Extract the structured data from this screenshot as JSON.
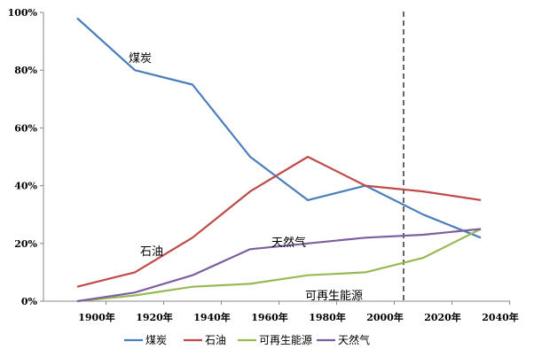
{
  "chart_data": {
    "type": "line",
    "title": "",
    "xlabel": "",
    "ylabel": "",
    "categories": [
      "1900年",
      "1920年",
      "1940年",
      "1960年",
      "1980年",
      "2000年",
      "2020年",
      "2040年"
    ],
    "y_ticks": [
      "0%",
      "20%",
      "40%",
      "60%",
      "80%",
      "100%"
    ],
    "ylim": [
      0,
      100
    ],
    "grid": false,
    "legend_position": "bottom",
    "reference_line": {
      "x": "2020年",
      "style": "dashed",
      "color": "#000000"
    },
    "series": [
      {
        "name": "煤炭",
        "color": "#4a7ebb",
        "values": [
          98,
          80,
          75,
          50,
          35,
          40,
          30,
          22
        ]
      },
      {
        "name": "石油",
        "color": "#be4b48",
        "values": [
          5,
          10,
          22,
          38,
          50,
          40,
          38,
          35
        ]
      },
      {
        "name": "可再生能源",
        "color": "#98b954",
        "values": [
          0,
          2,
          5,
          6,
          9,
          10,
          15,
          25
        ]
      },
      {
        "name": "天然气",
        "color": "#7d5fa0",
        "values": [
          0,
          3,
          9,
          18,
          20,
          22,
          23,
          25
        ]
      }
    ],
    "annotations": [
      {
        "text": "煤炭",
        "series": "煤炭"
      },
      {
        "text": "石油",
        "series": "石油"
      },
      {
        "text": "天然气",
        "series": "天然气"
      },
      {
        "text": "可再生能源",
        "series": "可再生能源"
      }
    ]
  }
}
